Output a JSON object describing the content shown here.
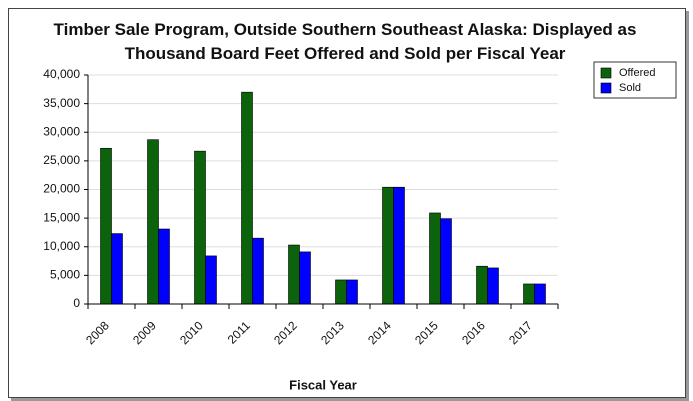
{
  "chart_data": {
    "type": "bar",
    "title": "Timber Sale Program, Outside Southern Southeast Alaska: Displayed as Thousand Board Feet Offered and Sold per Fiscal Year",
    "x_label": "Fiscal Year",
    "categories": [
      "2008",
      "2009",
      "2010",
      "2011",
      "2012",
      "2013",
      "2014",
      "2015",
      "2016",
      "2017"
    ],
    "series": [
      {
        "name": "Offered",
        "color": "#0b640b",
        "values": [
          27200,
          28700,
          26700,
          37000,
          10300,
          4200,
          20400,
          15900,
          6600,
          3500
        ]
      },
      {
        "name": "Sold",
        "color": "#0000ff",
        "values": [
          12300,
          13100,
          8400,
          11500,
          9100,
          4200,
          20400,
          14900,
          6300,
          3500
        ]
      }
    ],
    "ylim": [
      0,
      40000
    ],
    "yticks": [
      0,
      {
        "value": 5000,
        "label": "5,000"
      },
      {
        "value": 10000,
        "label": "10,000"
      },
      {
        "value": 15000,
        "label": "15,000"
      },
      {
        "value": 20000,
        "label": "20,000"
      },
      {
        "value": 25000,
        "label": "25,000"
      },
      {
        "value": 30000,
        "label": "30,000"
      },
      {
        "value": 35000,
        "label": "35,000"
      },
      {
        "value": 40000,
        "label": "40,000"
      }
    ],
    "grid": true,
    "legend": "upper right"
  }
}
